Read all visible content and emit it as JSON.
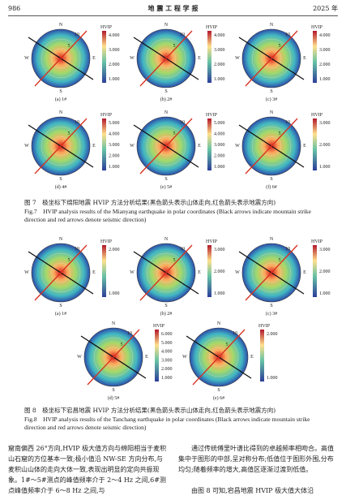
{
  "header": {
    "page": "986",
    "journal": "地 震 工 程 学 报",
    "year": "2025 年"
  },
  "compass": {
    "n": "N",
    "e": "E",
    "s": "S",
    "w": "W",
    "r1": "5",
    "r2": "10"
  },
  "colorbar_title": "HVIP",
  "figure7": {
    "panels": [
      {
        "label": "(a) 1#",
        "ticks": [
          "4.000",
          "3.000",
          "2.000",
          "1.000"
        ]
      },
      {
        "label": "(b) 2#",
        "ticks": [
          "4.000",
          "3.000",
          "2.000",
          "1.000"
        ]
      },
      {
        "label": "(c) 3#",
        "ticks": [
          "4.000",
          "3.000",
          "2.000",
          "1.000"
        ]
      },
      {
        "label": "(d) 4#",
        "ticks": [
          "5.000",
          "4.000",
          "3.000",
          "2.000",
          "1.000"
        ]
      },
      {
        "label": "(e) 5#",
        "ticks": [
          "5.000",
          "4.000",
          "3.000",
          "2.000",
          "1.000"
        ]
      },
      {
        "label": "(f) 6#",
        "ticks": [
          "3.000",
          "2.000",
          "1.000"
        ]
      }
    ],
    "caption_cn": "图 7　极坐标下绵阳地震 HVIP 方法分析结果(黑色箭头表示山体走向,红色箭头表示地震方向)",
    "caption_en": "Fig.7　HVIP analysis results of the Mianyang earthquake in polar coordinates (Black arrows indicate mountain strike direction and red arrows denote seismic direction)"
  },
  "figure8": {
    "panels": [
      {
        "label": "(a) 1#",
        "ticks": [
          "2.000",
          "1.000"
        ]
      },
      {
        "label": "(b) 2#",
        "ticks": [
          "3.000",
          "2.000",
          "1.000"
        ]
      },
      {
        "label": "(c) 3#",
        "ticks": [
          "3.000",
          "2.000",
          "1.000"
        ]
      },
      {
        "label": "(d) 5#",
        "ticks": [
          "6.000",
          "5.000",
          "4.000",
          "3.000",
          "2.000",
          "1.000"
        ]
      },
      {
        "label": "(e) 6#",
        "ticks": [
          "2.000",
          "1.000"
        ]
      }
    ],
    "caption_cn": "图 8　极坐标下宕昌地震 HVIP 方法分析结果(黑色箭头表示山体走向,红色箭头表示地震方向)",
    "caption_en": "Fig.8　HVIP analysis results of the Tanchang earthquake in polar coordinates (Black arrows indicate mountain strike direction and red arrows denote seismic direction)"
  },
  "body": {
    "left": "窟南偏西 26°方向,HVIP 极大值方向与绵阳相当于麦积山石窟的方位基本一致;极小值沿 NW-SE 方向分布,与麦积山山体的走向大体一致,表现出明显的定向共振现象。1#～5#测点的峰值频率介于 2～4 Hz 之间,6#测点峰值频率介于 6～8 Hz 之间,与",
    "right": [
      "通过传统傅里叶谱比得到的卓越频率相吻合。高值集中于图形的中部,呈对称分布;低值位于图形外围,分布均匀;随着频率的增大,高值区逐渐过渡到低值。",
      "由图 8 可知,宕昌地震 HVIP 极大值大体沿"
    ]
  }
}
